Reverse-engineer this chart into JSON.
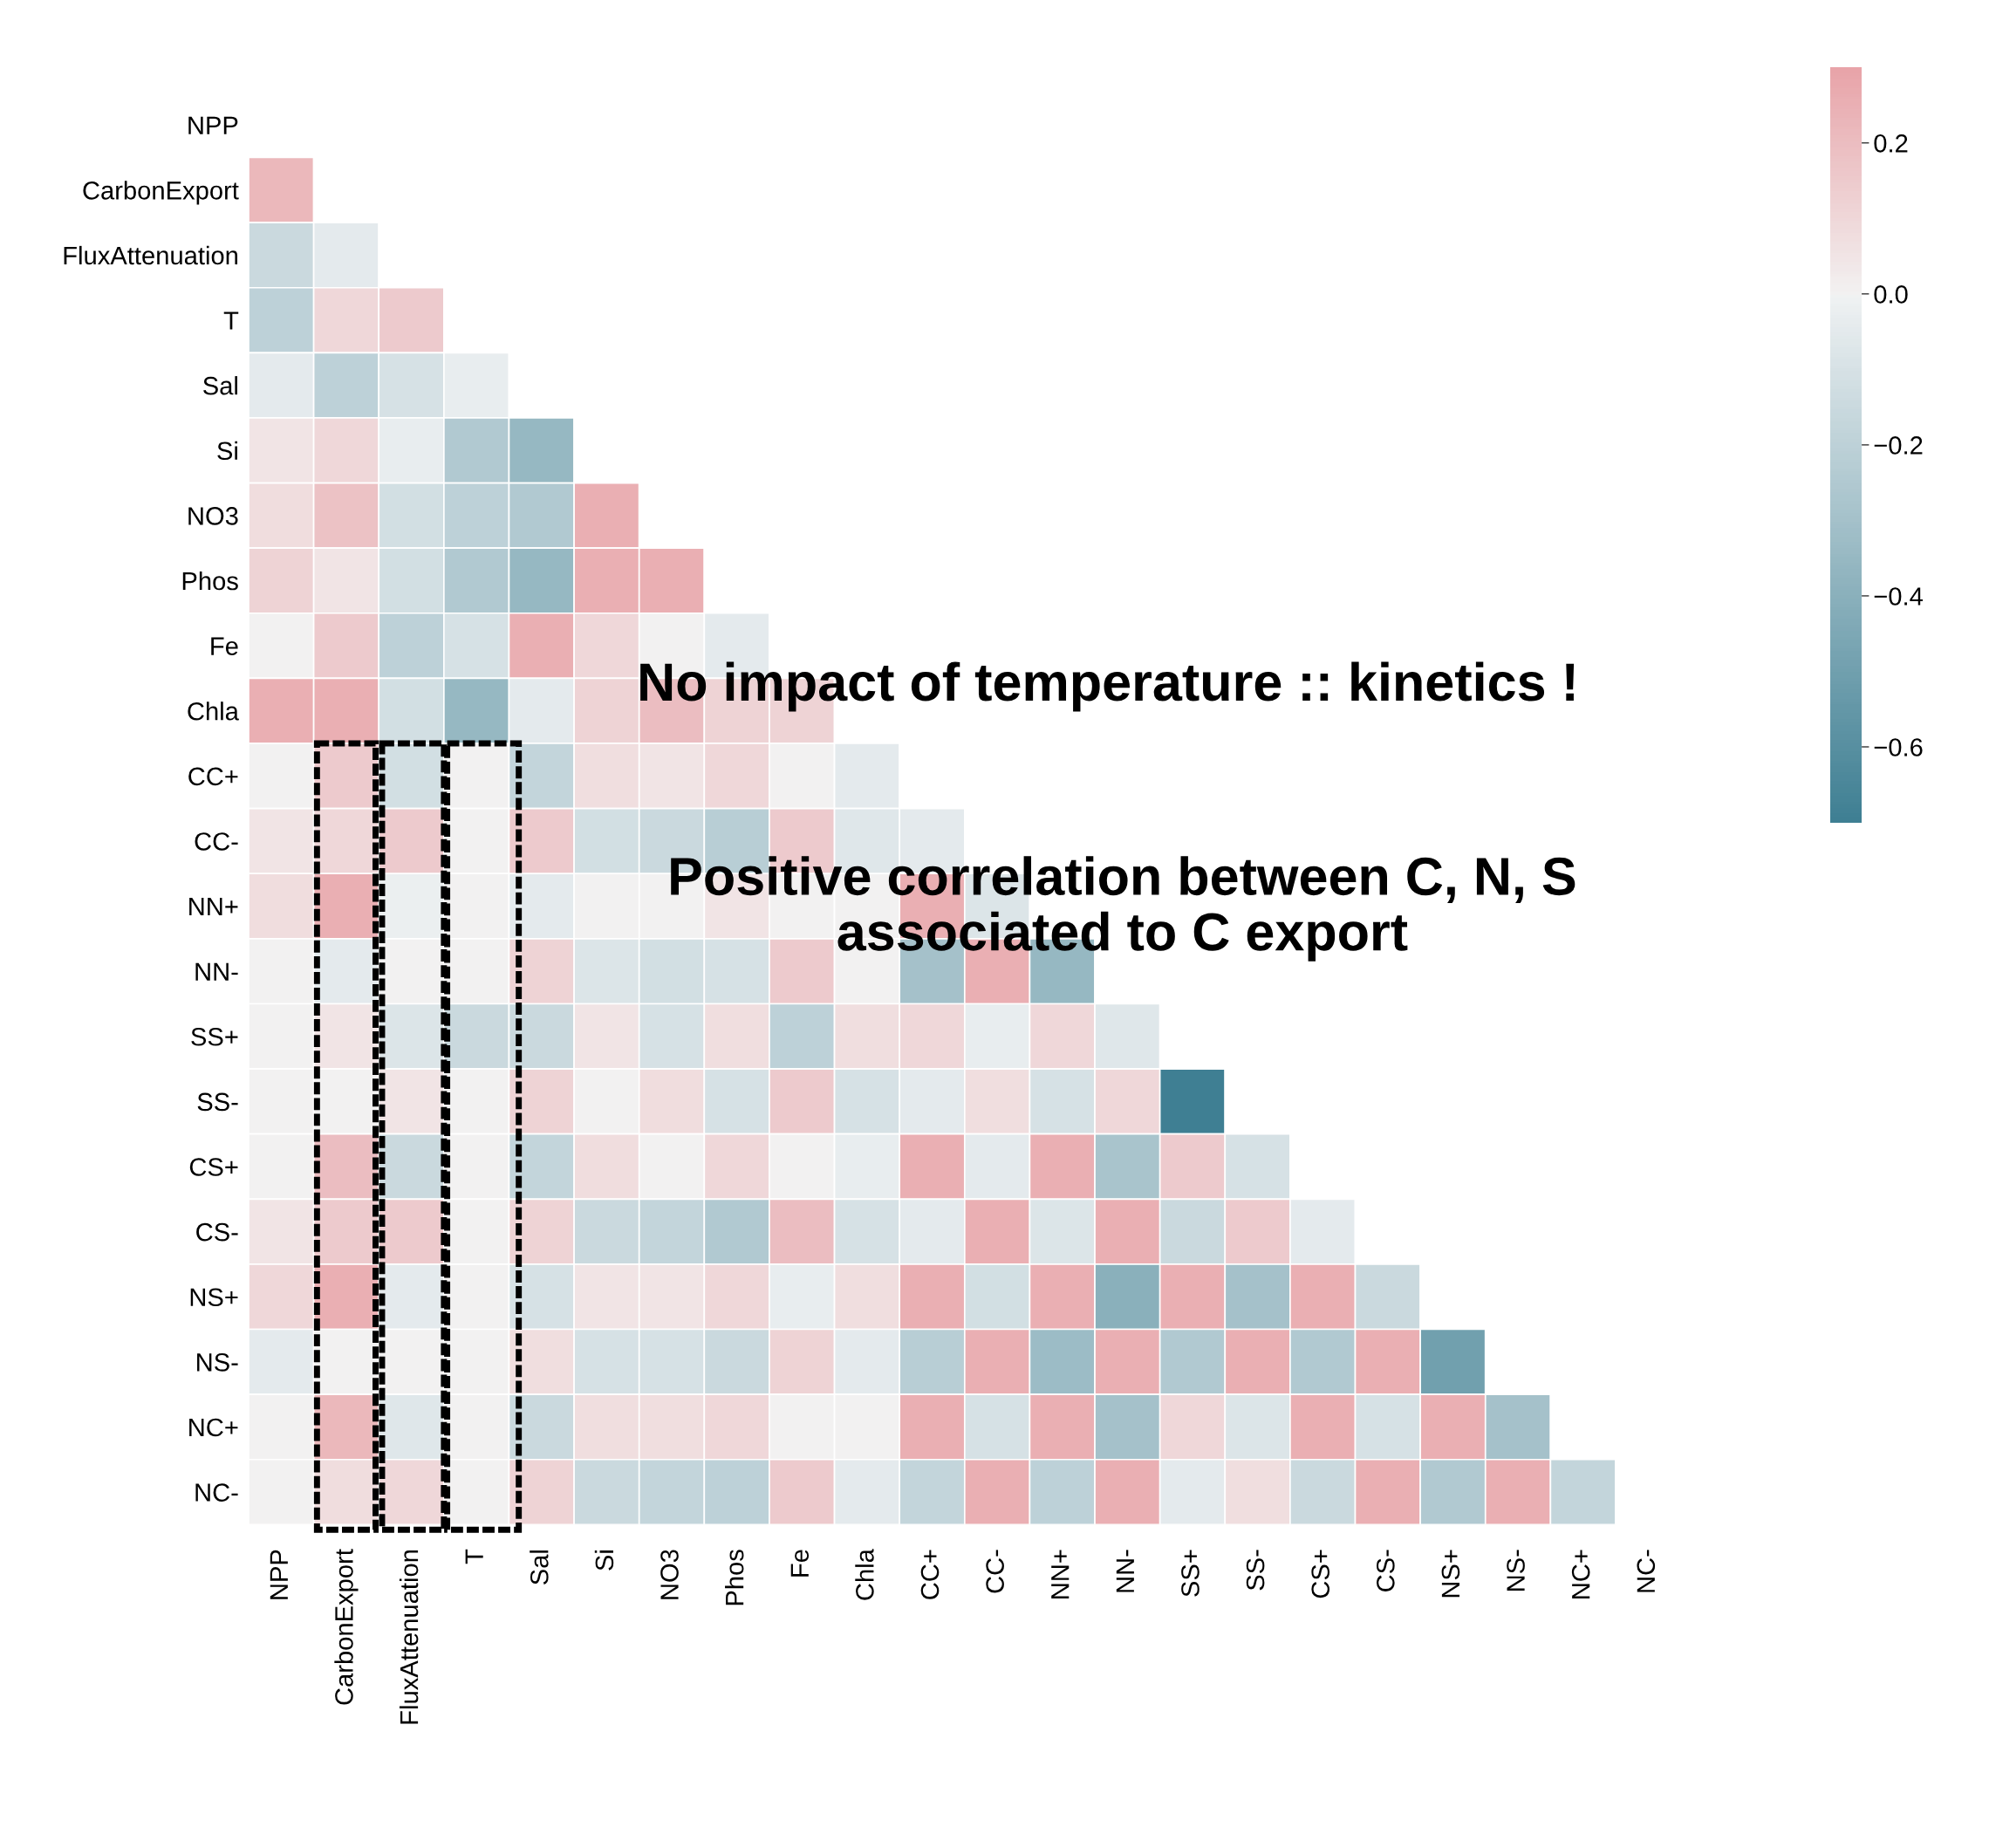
{
  "chart_data": {
    "type": "heatmap",
    "categories": [
      "NPP",
      "CarbonExport",
      "FluxAttenuation",
      "T",
      "Sal",
      "Si",
      "NO3",
      "Phos",
      "Fe",
      "Chla",
      "CC+",
      "CC-",
      "NN+",
      "NN-",
      "SS+",
      "SS-",
      "CS+",
      "CS-",
      "NS+",
      "NS-",
      "NC+",
      "NC-"
    ],
    "y_categories": [
      "NPP",
      "CarbonExport",
      "FluxAttenuation",
      "T",
      "Sal",
      "Si",
      "NO3",
      "Phos",
      "Fe",
      "Chla",
      "CC+",
      "CC-",
      "NN+",
      "NN-",
      "SS+",
      "SS-",
      "CS+",
      "CS-",
      "NS+",
      "NS-",
      "NC+",
      "NC-"
    ],
    "cells": [
      [
        null,
        null,
        null,
        null,
        null,
        null,
        null,
        null,
        null,
        null,
        null,
        null,
        null,
        null,
        null,
        null,
        null,
        null,
        null,
        null,
        null,
        null
      ],
      [
        0.22,
        null,
        null,
        null,
        null,
        null,
        null,
        null,
        null,
        null,
        null,
        null,
        null,
        null,
        null,
        null,
        null,
        null,
        null,
        null,
        null,
        null
      ],
      [
        -0.15,
        -0.05,
        null,
        null,
        null,
        null,
        null,
        null,
        null,
        null,
        null,
        null,
        null,
        null,
        null,
        null,
        null,
        null,
        null,
        null,
        null,
        null
      ],
      [
        -0.2,
        0.1,
        0.15,
        null,
        null,
        null,
        null,
        null,
        null,
        null,
        null,
        null,
        null,
        null,
        null,
        null,
        null,
        null,
        null,
        null,
        null,
        null
      ],
      [
        -0.05,
        -0.2,
        -0.1,
        -0.03,
        null,
        null,
        null,
        null,
        null,
        null,
        null,
        null,
        null,
        null,
        null,
        null,
        null,
        null,
        null,
        null,
        null,
        null
      ],
      [
        0.05,
        0.1,
        -0.03,
        -0.25,
        -0.35,
        null,
        null,
        null,
        null,
        null,
        null,
        null,
        null,
        null,
        null,
        null,
        null,
        null,
        null,
        null,
        null,
        null
      ],
      [
        0.08,
        0.18,
        -0.12,
        -0.2,
        -0.25,
        0.25,
        null,
        null,
        null,
        null,
        null,
        null,
        null,
        null,
        null,
        null,
        null,
        null,
        null,
        null,
        null,
        null
      ],
      [
        0.12,
        0.05,
        -0.12,
        -0.25,
        -0.35,
        0.25,
        0.25,
        null,
        null,
        null,
        null,
        null,
        null,
        null,
        null,
        null,
        null,
        null,
        null,
        null,
        null,
        null
      ],
      [
        0.0,
        0.15,
        -0.2,
        -0.1,
        0.25,
        0.1,
        0.0,
        -0.05,
        null,
        null,
        null,
        null,
        null,
        null,
        null,
        null,
        null,
        null,
        null,
        null,
        null,
        null
      ],
      [
        0.25,
        0.25,
        -0.12,
        -0.35,
        -0.05,
        0.12,
        0.2,
        0.12,
        0.12,
        null,
        null,
        null,
        null,
        null,
        null,
        null,
        null,
        null,
        null,
        null,
        null,
        null
      ],
      [
        0.0,
        0.15,
        -0.12,
        0.0,
        -0.18,
        0.07,
        0.05,
        0.1,
        0.0,
        -0.05,
        null,
        null,
        null,
        null,
        null,
        null,
        null,
        null,
        null,
        null,
        null,
        null
      ],
      [
        0.05,
        0.1,
        0.15,
        0.0,
        0.15,
        -0.12,
        -0.15,
        -0.22,
        0.15,
        -0.07,
        -0.05,
        null,
        null,
        null,
        null,
        null,
        null,
        null,
        null,
        null,
        null,
        null
      ],
      [
        0.08,
        0.25,
        -0.02,
        0.0,
        -0.05,
        0.0,
        0.0,
        0.05,
        0.0,
        0.0,
        0.25,
        -0.08,
        null,
        null,
        null,
        null,
        null,
        null,
        null,
        null,
        null,
        null
      ],
      [
        0.0,
        -0.05,
        0.0,
        0.0,
        0.12,
        -0.08,
        -0.12,
        -0.1,
        0.15,
        0.0,
        -0.3,
        0.25,
        -0.35,
        null,
        null,
        null,
        null,
        null,
        null,
        null,
        null,
        null
      ],
      [
        0.0,
        0.05,
        -0.08,
        -0.15,
        -0.15,
        0.05,
        -0.1,
        0.07,
        -0.2,
        0.07,
        0.1,
        -0.03,
        0.1,
        -0.07,
        null,
        null,
        null,
        null,
        null,
        null,
        null,
        null
      ],
      [
        0.0,
        0.0,
        0.05,
        0.0,
        0.12,
        0.0,
        0.08,
        -0.1,
        0.15,
        -0.1,
        -0.05,
        0.07,
        -0.1,
        0.1,
        -0.7,
        null,
        null,
        null,
        null,
        null,
        null,
        null
      ],
      [
        0.0,
        0.2,
        -0.15,
        0.0,
        -0.18,
        0.08,
        0.0,
        0.1,
        0.0,
        -0.03,
        0.25,
        -0.05,
        0.25,
        -0.28,
        0.15,
        -0.1,
        null,
        null,
        null,
        null,
        null,
        null
      ],
      [
        0.05,
        0.15,
        0.15,
        0.0,
        0.12,
        -0.15,
        -0.18,
        -0.25,
        0.2,
        -0.1,
        -0.05,
        0.25,
        -0.08,
        0.25,
        -0.15,
        0.15,
        -0.05,
        null,
        null,
        null,
        null,
        null
      ],
      [
        0.1,
        0.25,
        -0.05,
        0.0,
        -0.1,
        0.05,
        0.05,
        0.1,
        -0.03,
        0.07,
        0.25,
        -0.12,
        0.25,
        -0.4,
        0.25,
        -0.3,
        0.25,
        -0.15,
        null,
        null,
        null,
        null
      ],
      [
        -0.05,
        0.0,
        0.0,
        0.0,
        0.07,
        -0.1,
        -0.1,
        -0.15,
        0.12,
        -0.05,
        -0.22,
        0.25,
        -0.33,
        0.25,
        -0.25,
        0.25,
        -0.25,
        0.25,
        -0.5,
        null,
        null,
        null
      ],
      [
        0.0,
        0.22,
        -0.07,
        0.0,
        -0.15,
        0.07,
        0.07,
        0.1,
        0.0,
        0.0,
        0.25,
        -0.1,
        0.25,
        -0.3,
        0.1,
        -0.08,
        0.25,
        -0.1,
        0.25,
        -0.3,
        null,
        null
      ],
      [
        0.0,
        0.08,
        0.1,
        0.0,
        0.12,
        -0.15,
        -0.18,
        -0.2,
        0.15,
        -0.05,
        -0.18,
        0.25,
        -0.2,
        0.25,
        -0.05,
        0.07,
        -0.15,
        0.25,
        -0.25,
        0.25,
        -0.18,
        null
      ]
    ],
    "clim": [
      -0.7,
      0.3
    ],
    "cticks": [
      {
        "value": -0.6,
        "label": "−0.6"
      },
      {
        "value": -0.4,
        "label": "−0.4"
      },
      {
        "value": -0.2,
        "label": "−0.2"
      },
      {
        "value": 0.0,
        "label": "0.0"
      },
      {
        "value": 0.2,
        "label": "0.2"
      }
    ],
    "annotations": [
      "No impact of temperature :: kinetics !",
      "Positive correlation between C, N, S\nassociated to C export"
    ]
  }
}
